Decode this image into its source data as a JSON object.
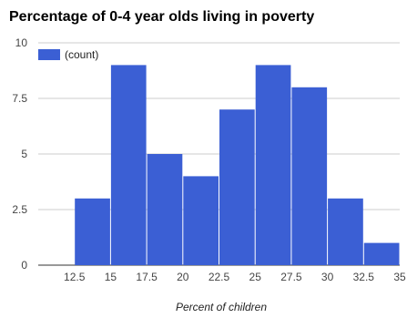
{
  "chart_data": {
    "type": "bar",
    "title": "Percentage of 0-4 year olds living in poverty",
    "xlabel": "Percent of children",
    "ylabel": "",
    "bins": [
      {
        "x0": 12.5,
        "x1": 15,
        "count": 3
      },
      {
        "x0": 15,
        "x1": 17.5,
        "count": 9
      },
      {
        "x0": 17.5,
        "x1": 20,
        "count": 5
      },
      {
        "x0": 20,
        "x1": 22.5,
        "count": 4
      },
      {
        "x0": 22.5,
        "x1": 25,
        "count": 7
      },
      {
        "x0": 25,
        "x1": 27.5,
        "count": 9
      },
      {
        "x0": 27.5,
        "x1": 30,
        "count": 8
      },
      {
        "x0": 30,
        "x1": 32.5,
        "count": 3
      },
      {
        "x0": 32.5,
        "x1": 35,
        "count": 1
      }
    ],
    "x_ticks": [
      "12.5",
      "15",
      "17.5",
      "20",
      "22.5",
      "25",
      "27.5",
      "30",
      "32.5",
      "35"
    ],
    "y_ticks": [
      "0",
      "2.5",
      "5",
      "7.5",
      "10"
    ],
    "xlim": [
      10,
      35
    ],
    "ylim": [
      0,
      10
    ],
    "legend": {
      "position": "top-left",
      "entries": [
        "(count)"
      ]
    },
    "grid": true,
    "colors": {
      "bar": "#3b5fd4",
      "grid": "#cccccc",
      "baseline": "#333333"
    }
  }
}
